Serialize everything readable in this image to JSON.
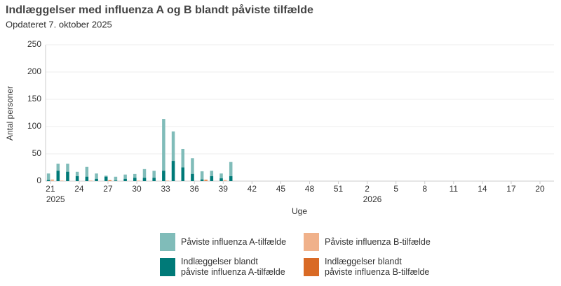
{
  "chart_data": {
    "type": "bar",
    "title": "Indlæggelser med influenza A og B blandt påviste tilfælde",
    "subtitle": "Opdateret 7. oktober 2025",
    "y_label": "Antal personer",
    "x_label": "Uge",
    "categories": [
      "21",
      null,
      null,
      "24",
      null,
      null,
      "27",
      null,
      null,
      "30",
      null,
      null,
      "33",
      null,
      null,
      "36",
      null,
      null,
      "39",
      null,
      null,
      "42",
      null,
      null,
      "45",
      null,
      null,
      "48",
      null,
      null,
      "51",
      null,
      null,
      "2",
      null,
      null,
      "5",
      null,
      null,
      "8",
      null,
      null,
      "11",
      null,
      null,
      "14",
      null,
      null,
      "17",
      null,
      null,
      "20"
    ],
    "category_years": [
      "2025",
      null,
      null,
      null,
      null,
      null,
      null,
      null,
      null,
      null,
      null,
      null,
      null,
      null,
      null,
      null,
      null,
      null,
      null,
      null,
      null,
      null,
      null,
      null,
      null,
      null,
      null,
      null,
      null,
      null,
      null,
      null,
      null,
      "2026",
      null,
      null,
      null,
      null,
      null,
      null,
      null,
      null,
      null,
      null,
      null,
      null,
      null,
      null,
      null,
      null,
      null,
      null
    ],
    "series": [
      {
        "name": "Påviste influenza A-tilfælde",
        "group": "A",
        "color": "#80bcb9",
        "values": [
          14,
          32,
          32,
          17,
          26,
          14,
          10,
          8,
          12,
          13,
          22,
          19,
          114,
          91,
          59,
          42,
          18,
          19,
          14,
          35,
          null,
          null,
          null,
          null,
          null,
          null,
          null,
          null,
          null,
          null,
          null,
          null,
          null,
          null,
          null,
          null,
          null,
          null,
          null,
          null,
          null,
          null,
          null,
          null,
          null,
          null,
          null,
          null,
          null,
          null,
          null,
          null
        ]
      },
      {
        "name": "Påviste influenza B-tilfælde",
        "group": "B",
        "color": "#f0b18a",
        "values": [
          3,
          1,
          0,
          0,
          1,
          0,
          2,
          0,
          0,
          1,
          0,
          0,
          1,
          0,
          0,
          0,
          3,
          0,
          2,
          0,
          null,
          null,
          null,
          null,
          null,
          null,
          null,
          null,
          null,
          null,
          null,
          null,
          null,
          null,
          null,
          null,
          null,
          null,
          null,
          null,
          null,
          null,
          null,
          null,
          null,
          null,
          null,
          null,
          null,
          null,
          null,
          null
        ]
      },
      {
        "name": "Indlæggelser blandt\npåviste influenza A-tilfælde",
        "group": "A",
        "color": "#007a78",
        "values": [
          2,
          19,
          17,
          9,
          8,
          4,
          8,
          1,
          4,
          6,
          6,
          6,
          19,
          37,
          25,
          13,
          3,
          9,
          5,
          9,
          null,
          null,
          null,
          null,
          null,
          null,
          null,
          null,
          null,
          null,
          null,
          null,
          null,
          null,
          null,
          null,
          null,
          null,
          null,
          null,
          null,
          null,
          null,
          null,
          null,
          null,
          null,
          null,
          null,
          null,
          null,
          null
        ]
      },
      {
        "name": "Indlæggelser blandt\npåviste influenza B-tilfælde",
        "group": "B",
        "color": "#d96a25",
        "values": [
          0,
          0,
          0,
          0,
          0,
          0,
          1,
          0,
          0,
          0,
          0,
          0,
          0,
          0,
          0,
          0,
          1,
          0,
          0,
          0,
          null,
          null,
          null,
          null,
          null,
          null,
          null,
          null,
          null,
          null,
          null,
          null,
          null,
          null,
          null,
          null,
          null,
          null,
          null,
          null,
          null,
          null,
          null,
          null,
          null,
          null,
          null,
          null,
          null,
          null,
          null,
          null
        ]
      }
    ],
    "ylim": [
      0,
      250
    ],
    "yticks": [
      0,
      50,
      100,
      150,
      200,
      250
    ],
    "grid": true
  }
}
